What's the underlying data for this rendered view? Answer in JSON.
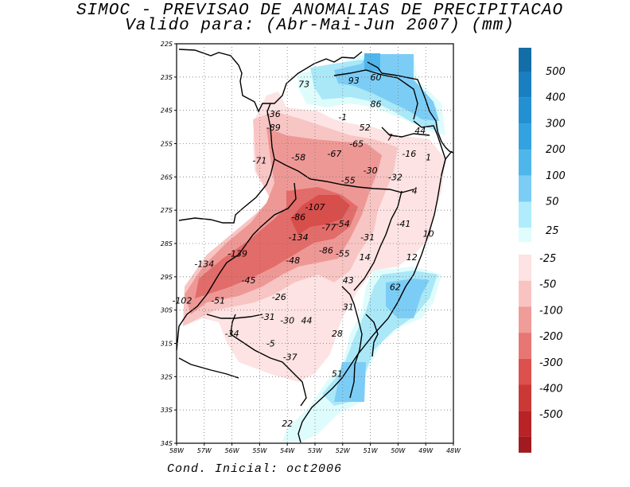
{
  "header": {
    "title": "SIMOC - PREVISAO DE ANOMALIAS DE PRECIPITACAO",
    "subtitle": "Valido para: (Abr-Mai-Jun 2007) (mm)"
  },
  "footer": {
    "initial_condition": "Cond. Inicial: oct2006"
  },
  "map": {
    "lon_range": [
      -58,
      -48
    ],
    "lat_range": [
      -34,
      -22
    ],
    "lat_ticks": [
      "22S",
      "23S",
      "24S",
      "25S",
      "26S",
      "27S",
      "28S",
      "29S",
      "30S",
      "31S",
      "32S",
      "33S",
      "34S"
    ],
    "lon_ticks": [
      "58W",
      "57W",
      "56W",
      "55W",
      "54W",
      "53W",
      "52W",
      "51W",
      "50W",
      "49W",
      "48W"
    ],
    "point_labels": [
      {
        "text": "73",
        "lon": -53.4,
        "lat": -23.3
      },
      {
        "text": "93",
        "lon": -51.6,
        "lat": -23.2
      },
      {
        "text": "60",
        "lon": -50.8,
        "lat": -23.1
      },
      {
        "text": "86",
        "lon": -50.8,
        "lat": -23.9
      },
      {
        "text": "-36",
        "lon": -54.5,
        "lat": -24.2
      },
      {
        "text": "-1",
        "lon": -52.0,
        "lat": -24.3
      },
      {
        "text": "52",
        "lon": -51.2,
        "lat": -24.6
      },
      {
        "text": "44",
        "lon": -49.2,
        "lat": -24.7
      },
      {
        "text": "-89",
        "lon": -54.5,
        "lat": -24.6
      },
      {
        "text": "7",
        "lon": -50.3,
        "lat": -24.9
      },
      {
        "text": "-65",
        "lon": -51.5,
        "lat": -25.1
      },
      {
        "text": "-16",
        "lon": -49.6,
        "lat": -25.4
      },
      {
        "text": "1",
        "lon": -48.9,
        "lat": -25.5
      },
      {
        "text": "-71",
        "lon": -55.0,
        "lat": -25.6
      },
      {
        "text": "-58",
        "lon": -53.6,
        "lat": -25.5
      },
      {
        "text": "-67",
        "lon": -52.3,
        "lat": -25.4
      },
      {
        "text": "-30",
        "lon": -51.0,
        "lat": -25.9
      },
      {
        "text": "-32",
        "lon": -50.1,
        "lat": -26.1
      },
      {
        "text": "-55",
        "lon": -51.8,
        "lat": -26.2
      },
      {
        "text": "4",
        "lon": -49.4,
        "lat": -26.5
      },
      {
        "text": "-107",
        "lon": -53.0,
        "lat": -27.0
      },
      {
        "text": "-86",
        "lon": -53.6,
        "lat": -27.3
      },
      {
        "text": "-77",
        "lon": -52.5,
        "lat": -27.6
      },
      {
        "text": "-54",
        "lon": -52.0,
        "lat": -27.5
      },
      {
        "text": "-41",
        "lon": -49.8,
        "lat": -27.5
      },
      {
        "text": "10",
        "lon": -48.9,
        "lat": -27.8
      },
      {
        "text": "-134",
        "lon": -53.6,
        "lat": -27.9
      },
      {
        "text": "-31",
        "lon": -51.1,
        "lat": -27.9
      },
      {
        "text": "-139",
        "lon": -55.8,
        "lat": -28.4
      },
      {
        "text": "-86",
        "lon": -52.6,
        "lat": -28.3
      },
      {
        "text": "-55",
        "lon": -52.0,
        "lat": -28.4
      },
      {
        "text": "14",
        "lon": -51.2,
        "lat": -28.5
      },
      {
        "text": "12",
        "lon": -49.5,
        "lat": -28.5
      },
      {
        "text": "-134",
        "lon": -57.0,
        "lat": -28.7
      },
      {
        "text": "-48",
        "lon": -53.8,
        "lat": -28.6
      },
      {
        "text": "-45",
        "lon": -55.4,
        "lat": -29.2
      },
      {
        "text": "43",
        "lon": -51.8,
        "lat": -29.2
      },
      {
        "text": "62",
        "lon": -50.1,
        "lat": -29.4
      },
      {
        "text": "-102",
        "lon": -57.8,
        "lat": -29.8
      },
      {
        "text": "-51",
        "lon": -56.5,
        "lat": -29.8
      },
      {
        "text": "-26",
        "lon": -54.3,
        "lat": -29.7
      },
      {
        "text": "31",
        "lon": -51.8,
        "lat": -30.0
      },
      {
        "text": "-31",
        "lon": -54.7,
        "lat": -30.3
      },
      {
        "text": "-30",
        "lon": -54.0,
        "lat": -30.4
      },
      {
        "text": "44",
        "lon": -53.3,
        "lat": -30.4
      },
      {
        "text": "-34",
        "lon": -56.0,
        "lat": -30.8
      },
      {
        "text": "28",
        "lon": -52.2,
        "lat": -30.8
      },
      {
        "text": "-5",
        "lon": -54.6,
        "lat": -31.1
      },
      {
        "text": "-37",
        "lon": -53.9,
        "lat": -31.5
      },
      {
        "text": "51",
        "lon": -52.2,
        "lat": -32.0
      },
      {
        "text": "22",
        "lon": -54.0,
        "lat": -33.5
      }
    ]
  },
  "colorbar": {
    "positive": [
      {
        "label": "500",
        "color": "#1a7fc0"
      },
      {
        "label": "400",
        "color": "#2390d3"
      },
      {
        "label": "300",
        "color": "#33a2e0"
      },
      {
        "label": "200",
        "color": "#4fb6ec"
      },
      {
        "label": "100",
        "color": "#7ccdf6"
      },
      {
        "label": "50",
        "color": "#b0ecfb"
      },
      {
        "label": "25",
        "color": "#e0fdfd"
      }
    ],
    "negative": [
      {
        "label": "-25",
        "color": "#fde3e3"
      },
      {
        "label": "-50",
        "color": "#f9c3c1"
      },
      {
        "label": "-100",
        "color": "#f09c99"
      },
      {
        "label": "-200",
        "color": "#e87672"
      },
      {
        "label": "-300",
        "color": "#dc514d"
      },
      {
        "label": "-400",
        "color": "#cb3835"
      },
      {
        "label": "-500",
        "color": "#b72326"
      }
    ],
    "extra_top_color": "#136ea8",
    "extra_bottom_color": "#a01a1f"
  },
  "shading_colors": {
    "neg25": "#fde3e3",
    "neg50": "#f7c5c3",
    "neg100": "#ee9896",
    "neg200": "#e26c69",
    "neg300": "#d84e4b",
    "pos25": "#dffcfc",
    "pos50": "#aae8f8",
    "pos100": "#7ccdf6",
    "pos200": "#4fb6ec"
  }
}
